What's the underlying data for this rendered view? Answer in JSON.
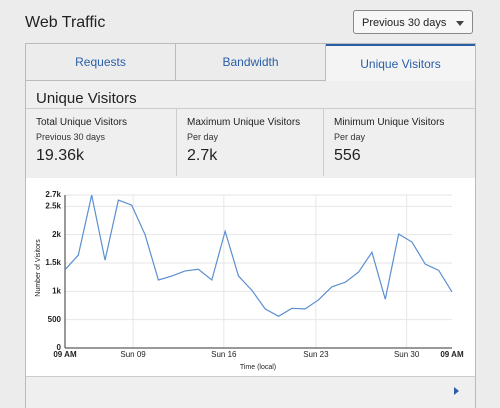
{
  "header": {
    "title": "Web Traffic",
    "dropdown": "Previous 30 days"
  },
  "tabs": [
    "Requests",
    "Bandwidth",
    "Unique Visitors"
  ],
  "panel": {
    "title": "Unique Visitors",
    "stats": [
      {
        "label": "Total Unique Visitors",
        "sublabel": "Previous 30 days",
        "value": "19.36k"
      },
      {
        "label": "Maximum Unique Visitors",
        "sublabel": "Per day",
        "value": "2.7k"
      },
      {
        "label": "Minimum Unique Visitors",
        "sublabel": "Per day",
        "value": "556"
      }
    ]
  },
  "chart_data": {
    "type": "line",
    "ylabel": "Number of Visitors",
    "xlabel": "Time (local)",
    "x": [
      0,
      1,
      2,
      3,
      4,
      5,
      6,
      7,
      8,
      9,
      10,
      11,
      12,
      13,
      14,
      15,
      16,
      17,
      18,
      19,
      20,
      21,
      22,
      23,
      24,
      25,
      26,
      27,
      28,
      29
    ],
    "series": [
      {
        "name": "Unique Visitors",
        "color": "#5b8fd0",
        "values": [
          1380,
          1640,
          2700,
          1550,
          2610,
          2520,
          2000,
          1200,
          1270,
          1360,
          1390,
          1200,
          2060,
          1270,
          1020,
          690,
          560,
          700,
          690,
          850,
          1080,
          1160,
          1340,
          1690,
          860,
          2010,
          1870,
          1480,
          1370,
          990
        ]
      }
    ],
    "xlim": [
      0,
      29
    ],
    "xticks": [
      {
        "value": 0,
        "label": "09 AM"
      },
      {
        "value": 5.1,
        "label": "Sun 09"
      },
      {
        "value": 11.9,
        "label": "Sun 16"
      },
      {
        "value": 18.8,
        "label": "Sun 23"
      },
      {
        "value": 25.6,
        "label": "Sun 30"
      },
      {
        "value": 29,
        "label": "09 AM"
      }
    ],
    "ylim": [
      0,
      2700
    ],
    "yticks": [
      0,
      500,
      {
        "value": 1000,
        "label": "1k"
      },
      {
        "value": 1500,
        "label": "1.5k"
      },
      {
        "value": 2000,
        "label": "2k"
      },
      {
        "value": 2500,
        "label": "2.5k"
      },
      {
        "value": 2700,
        "label": "2.7k"
      }
    ],
    "grid": true
  }
}
